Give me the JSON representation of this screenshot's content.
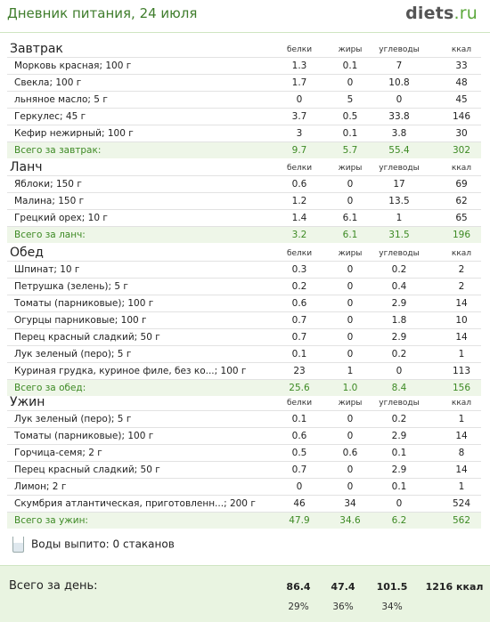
{
  "header": {
    "title": "Дневник питания, 24 июля",
    "logo_main": "diets",
    "logo_tld": ".ru"
  },
  "columns": [
    "белки",
    "жиры",
    "углеводы",
    "ккал"
  ],
  "meals": [
    {
      "name": "Завтрак",
      "items": [
        [
          "Морковь красная; 100 г",
          "1.3",
          "0.1",
          "7",
          "33"
        ],
        [
          "Свекла; 100 г",
          "1.7",
          "0",
          "10.8",
          "48"
        ],
        [
          "льняное масло; 5 г",
          "0",
          "5",
          "0",
          "45"
        ],
        [
          "Геркулес; 45 г",
          "3.7",
          "0.5",
          "33.8",
          "146"
        ],
        [
          "Кефир нежирный; 100 г",
          "3",
          "0.1",
          "3.8",
          "30"
        ]
      ],
      "total": [
        "Всего за завтрак:",
        "9.7",
        "5.7",
        "55.4",
        "302"
      ]
    },
    {
      "name": "Ланч",
      "items": [
        [
          "Яблоки; 150 г",
          "0.6",
          "0",
          "17",
          "69"
        ],
        [
          "Малина; 150 г",
          "1.2",
          "0",
          "13.5",
          "62"
        ],
        [
          "Грецкий орех; 10 г",
          "1.4",
          "6.1",
          "1",
          "65"
        ]
      ],
      "total": [
        "Всего за ланч:",
        "3.2",
        "6.1",
        "31.5",
        "196"
      ]
    },
    {
      "name": "Обед",
      "items": [
        [
          "Шпинат; 10 г",
          "0.3",
          "0",
          "0.2",
          "2"
        ],
        [
          "Петрушка (зелень); 5 г",
          "0.2",
          "0",
          "0.4",
          "2"
        ],
        [
          "Томаты (парниковые); 100 г",
          "0.6",
          "0",
          "2.9",
          "14"
        ],
        [
          "Огурцы парниковые; 100 г",
          "0.7",
          "0",
          "1.8",
          "10"
        ],
        [
          "Перец красный сладкий; 50 г",
          "0.7",
          "0",
          "2.9",
          "14"
        ],
        [
          "Лук зеленый (перо); 5 г",
          "0.1",
          "0",
          "0.2",
          "1"
        ],
        [
          "Куриная грудка, куриное филе, без ко...; 100 г",
          "23",
          "1",
          "0",
          "113"
        ]
      ],
      "total": [
        "Всего за обед:",
        "25.6",
        "1.0",
        "8.4",
        "156"
      ]
    },
    {
      "name": "Ужин",
      "items": [
        [
          "Лук зеленый (перо); 5 г",
          "0.1",
          "0",
          "0.2",
          "1"
        ],
        [
          "Томаты (парниковые); 100 г",
          "0.6",
          "0",
          "2.9",
          "14"
        ],
        [
          "Горчица-семя; 2 г",
          "0.5",
          "0.6",
          "0.1",
          "8"
        ],
        [
          "Перец красный сладкий; 50 г",
          "0.7",
          "0",
          "2.9",
          "14"
        ],
        [
          "Лимон; 2 г",
          "0",
          "0",
          "0.1",
          "1"
        ],
        [
          "Скумбрия атлантическая, приготовленн...; 200 г",
          "46",
          "34",
          "0",
          "524"
        ]
      ],
      "total": [
        "Всего за ужин:",
        "47.9",
        "34.6",
        "6.2",
        "562"
      ]
    }
  ],
  "water": {
    "text": "Воды выпито: 0 стаканов"
  },
  "daily": {
    "label": "Всего за день:",
    "protein": "86.4",
    "fat": "47.4",
    "carbs": "101.5",
    "kcal": "1216 ккал",
    "protein_pct": "29%",
    "fat_pct": "36%",
    "carbs_pct": "34%"
  }
}
